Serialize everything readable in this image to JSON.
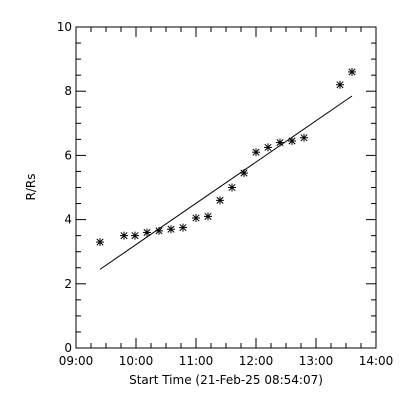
{
  "chart_data": {
    "type": "scatter",
    "xlabel": "Start Time (21-Feb-25 08:54:07)",
    "ylabel": "R/Rs",
    "xlim": [
      "09:00",
      "14:00"
    ],
    "ylim": [
      0,
      10
    ],
    "x_tick_labels": [
      "09:00",
      "10:00",
      "11:00",
      "12:00",
      "13:00",
      "14:00"
    ],
    "y_tick_labels": [
      "0",
      "2",
      "4",
      "6",
      "8",
      "10"
    ],
    "grid": false,
    "series": [
      {
        "marker": "asterisk",
        "points": [
          {
            "x": "09:24",
            "y": 3.3
          },
          {
            "x": "09:48",
            "y": 3.5
          },
          {
            "x": "09:59",
            "y": 3.5
          },
          {
            "x": "10:11",
            "y": 3.6
          },
          {
            "x": "10:23",
            "y": 3.65
          },
          {
            "x": "10:35",
            "y": 3.7
          },
          {
            "x": "10:47",
            "y": 3.75
          },
          {
            "x": "11:00",
            "y": 4.05
          },
          {
            "x": "11:12",
            "y": 4.1
          },
          {
            "x": "11:24",
            "y": 4.6
          },
          {
            "x": "11:36",
            "y": 5.0
          },
          {
            "x": "11:48",
            "y": 5.45
          },
          {
            "x": "12:00",
            "y": 6.1
          },
          {
            "x": "12:12",
            "y": 6.25
          },
          {
            "x": "12:24",
            "y": 6.4
          },
          {
            "x": "12:36",
            "y": 6.45
          },
          {
            "x": "12:48",
            "y": 6.55
          },
          {
            "x": "13:24",
            "y": 8.2
          },
          {
            "x": "13:36",
            "y": 8.6
          }
        ]
      }
    ],
    "fit_line": [
      {
        "x": "09:24",
        "y": 2.45
      },
      {
        "x": "13:36",
        "y": 7.85
      }
    ]
  }
}
